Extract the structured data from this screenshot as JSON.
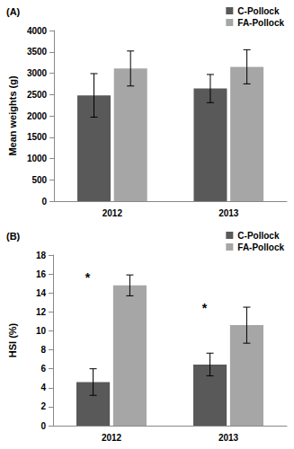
{
  "chart_data": [
    {
      "type": "bar",
      "title": "(A)",
      "y_label": "Mean weights (g)",
      "categories": [
        "2012",
        "2013"
      ],
      "series": [
        {
          "name": "C-Pollock",
          "color": "#595959",
          "values": [
            2480,
            2640
          ],
          "errors": [
            510,
            330
          ]
        },
        {
          "name": "FA-Pollock",
          "color": "#a6a6a6",
          "values": [
            3110,
            3150
          ],
          "errors": [
            410,
            400
          ]
        }
      ],
      "ylim": [
        0,
        4000
      ],
      "yticks": [
        0,
        500,
        1000,
        1500,
        2000,
        2500,
        3000,
        3500,
        4000
      ],
      "grid": false,
      "legend": "top-right"
    },
    {
      "type": "bar",
      "title": "(B)",
      "y_label": "HSI (%)",
      "categories": [
        "2012",
        "2013"
      ],
      "series": [
        {
          "name": "C-Pollock",
          "color": "#595959",
          "values": [
            4.6,
            6.45
          ],
          "errors": [
            1.4,
            1.2
          ]
        },
        {
          "name": "FA-Pollock",
          "color": "#a6a6a6",
          "values": [
            14.8,
            10.6
          ],
          "errors": [
            1.1,
            1.9
          ]
        }
      ],
      "annotations": [
        {
          "text": "*",
          "x": "2012",
          "y": 15.6
        },
        {
          "text": "*",
          "x": "2013",
          "y": 12.4
        }
      ],
      "ylim": [
        0,
        18
      ],
      "yticks": [
        0,
        2,
        4,
        6,
        8,
        10,
        12,
        14,
        16,
        18
      ],
      "grid": false,
      "legend": "top-right"
    }
  ]
}
